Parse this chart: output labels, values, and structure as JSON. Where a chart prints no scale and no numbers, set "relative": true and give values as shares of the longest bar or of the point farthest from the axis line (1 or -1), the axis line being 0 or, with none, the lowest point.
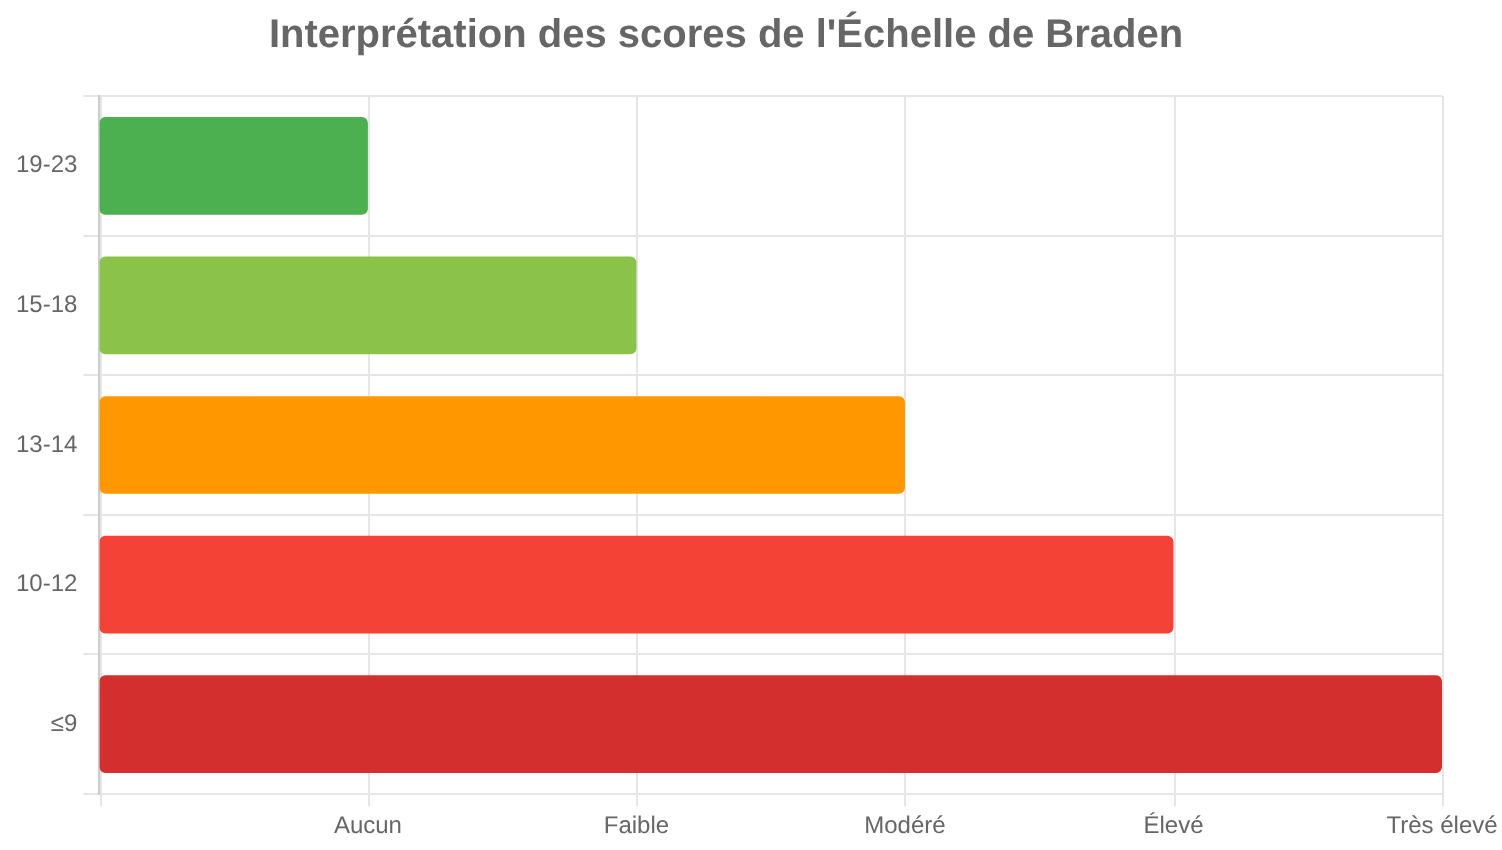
{
  "chart_data": {
    "type": "bar",
    "orientation": "horizontal",
    "title": "Interprétation des scores de l'Échelle de Braden",
    "categories": [
      "19-23",
      "15-18",
      "13-14",
      "10-12",
      "≤9"
    ],
    "values": [
      0.2,
      0.4,
      0.6,
      0.8,
      1
    ],
    "relative": true,
    "colors": [
      "#4caf50",
      "#8bc34a",
      "#ff9800",
      "#f44336",
      "#d32f2f"
    ],
    "annotations": [
      "Aucun",
      "Faible",
      "Modéré",
      "Élevé",
      "Très élevé"
    ],
    "grid": true,
    "legend": false
  }
}
